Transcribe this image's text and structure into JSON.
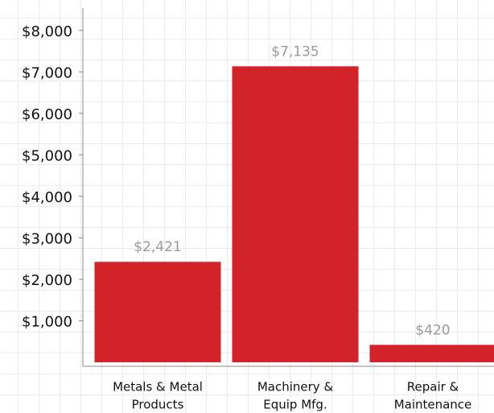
{
  "chart_data": {
    "type": "bar",
    "categories": [
      [
        "Metals & Metal",
        "Products"
      ],
      [
        "Machinery &",
        "Equip Mfg."
      ],
      [
        "Repair &",
        "Maintenance"
      ]
    ],
    "values": [
      2421,
      7135,
      420
    ],
    "value_labels": [
      "$2,421",
      "$7,135",
      "$420"
    ],
    "color": "#d2232a",
    "ylim": [
      0,
      8500
    ],
    "yticks": [
      {
        "value": 1000,
        "label": "$1,000"
      },
      {
        "value": 2000,
        "label": "$2,000"
      },
      {
        "value": 3000,
        "label": "$3,000"
      },
      {
        "value": 4000,
        "label": "$4,000"
      },
      {
        "value": 5000,
        "label": "$5,000"
      },
      {
        "value": 6000,
        "label": "$6,000"
      },
      {
        "value": 7000,
        "label": "$7,000"
      },
      {
        "value": 8000,
        "label": "$8,000"
      }
    ]
  }
}
